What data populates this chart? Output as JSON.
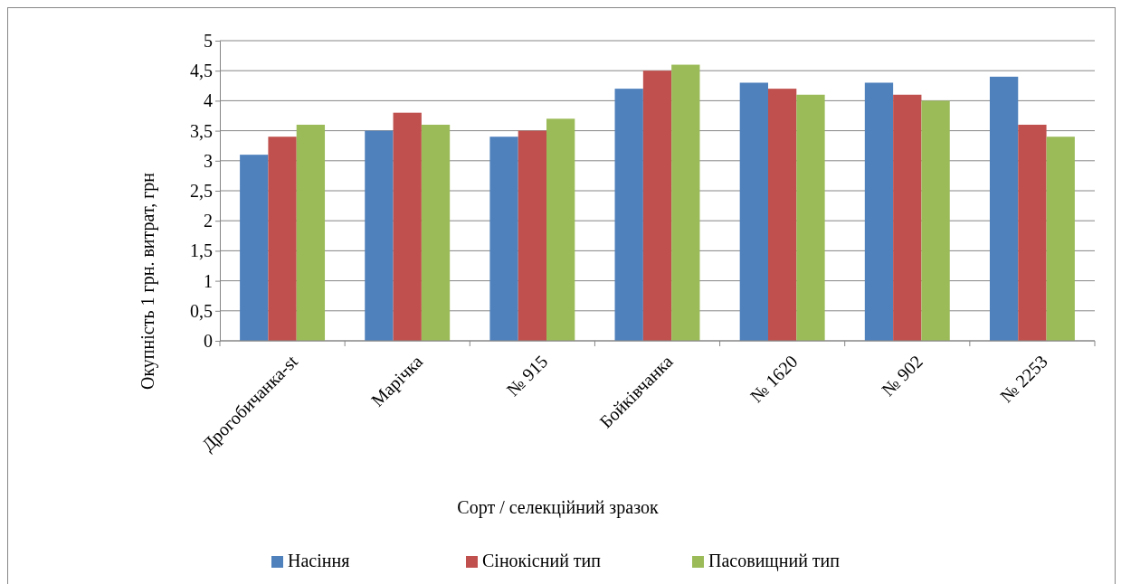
{
  "chart_data": {
    "type": "bar",
    "xlabel": "Сорт / селекційний зразок",
    "ylabel": "Окупність  1 грн. витрат, грн",
    "categories": [
      "Дрогобичанка-st",
      "Марічка",
      "№ 915",
      "Бойківчанка",
      "№ 1620",
      "№ 902",
      "№ 2253"
    ],
    "series": [
      {
        "name": "Насіння",
        "color": "#4f81bd",
        "values": [
          3.1,
          3.5,
          3.4,
          4.2,
          4.3,
          4.3,
          4.4
        ]
      },
      {
        "name": "Сінокісний тип",
        "color": "#c0504d",
        "values": [
          3.4,
          3.8,
          3.5,
          4.5,
          4.2,
          4.1,
          3.6
        ]
      },
      {
        "name": "Пасовищний тип",
        "color": "#9bbb59",
        "values": [
          3.6,
          3.6,
          3.7,
          4.6,
          4.1,
          4.0,
          3.4
        ]
      }
    ],
    "ylim": [
      0,
      5
    ],
    "yticks": [
      0,
      {
        "value": 0.5,
        "label": "0,5"
      },
      1,
      {
        "value": 1.5,
        "label": "1,5"
      },
      2,
      {
        "value": 2.5,
        "label": "2,5"
      },
      3,
      {
        "value": 3.5,
        "label": "3,5"
      },
      4,
      {
        "value": 4.5,
        "label": "4,5"
      },
      5
    ],
    "grid": "y",
    "legend": "bottom"
  }
}
